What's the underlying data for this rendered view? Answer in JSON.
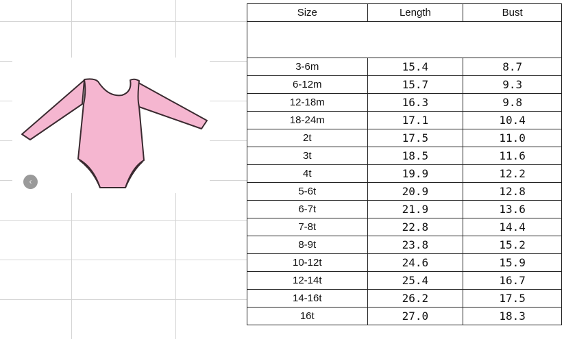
{
  "image": {
    "alt_subject": "pink long-sleeve leotard",
    "garment_color": "#f5b6d0",
    "nav_icon": "chevron-left-icon"
  },
  "table": {
    "headers": [
      "Size",
      "Length",
      "Bust"
    ],
    "rows": [
      [
        "3-6m",
        "15.4",
        "8.7"
      ],
      [
        "6-12m",
        "15.7",
        "9.3"
      ],
      [
        "12-18m",
        "16.3",
        "9.8"
      ],
      [
        "18-24m",
        "17.1",
        "10.4"
      ],
      [
        "2t",
        "17.5",
        "11.0"
      ],
      [
        "3t",
        "18.5",
        "11.6"
      ],
      [
        "4t",
        "19.9",
        "12.2"
      ],
      [
        "5-6t",
        "20.9",
        "12.8"
      ],
      [
        "6-7t",
        "21.9",
        "13.6"
      ],
      [
        "7-8t",
        "22.8",
        "14.4"
      ],
      [
        "8-9t",
        "23.8",
        "15.2"
      ],
      [
        "10-12t",
        "24.6",
        "15.9"
      ],
      [
        "12-14t",
        "25.4",
        "16.7"
      ],
      [
        "14-16t",
        "26.2",
        "17.5"
      ],
      [
        "16t",
        "27.0",
        "18.3"
      ]
    ]
  }
}
